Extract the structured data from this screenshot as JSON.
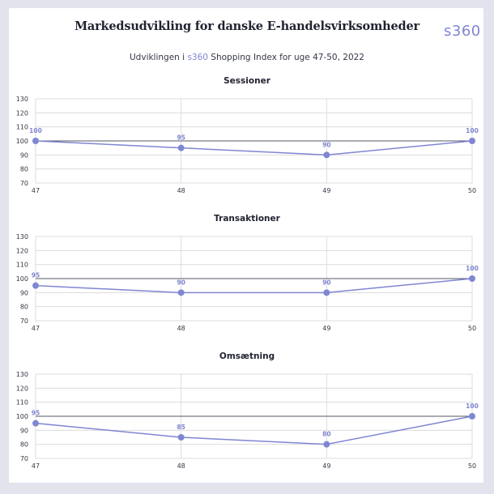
{
  "header": {
    "title": "Markedsudvikling for danske E-handelsvirksomheder",
    "brand": "s360",
    "subtitle_prefix": "Udviklingen i ",
    "subtitle_accent": "s360",
    "subtitle_suffix": " Shopping Index for uge 47-50, 2022"
  },
  "colors": {
    "series": "#7f86d2",
    "reference_line": "#555a66",
    "grid": "#dcdcdc",
    "background": "#e3e3ee"
  },
  "chart_data": [
    {
      "type": "line",
      "title": "Sessioner",
      "x": [
        "47",
        "48",
        "49",
        "50"
      ],
      "values": [
        100,
        95,
        90,
        100
      ],
      "reference": 100,
      "ylim": [
        70,
        130
      ],
      "yticks": [
        70,
        80,
        90,
        100,
        110,
        120,
        130
      ],
      "grid": true
    },
    {
      "type": "line",
      "title": "Transaktioner",
      "x": [
        "47",
        "48",
        "49",
        "50"
      ],
      "values": [
        95,
        90,
        90,
        100
      ],
      "reference": 100,
      "ylim": [
        70,
        130
      ],
      "yticks": [
        70,
        80,
        90,
        100,
        110,
        120,
        130
      ],
      "grid": true
    },
    {
      "type": "line",
      "title": "Omsætning",
      "x": [
        "47",
        "48",
        "49",
        "50"
      ],
      "values": [
        95,
        85,
        80,
        100
      ],
      "reference": 100,
      "ylim": [
        70,
        130
      ],
      "yticks": [
        70,
        80,
        90,
        100,
        110,
        120,
        130
      ],
      "grid": true
    }
  ]
}
